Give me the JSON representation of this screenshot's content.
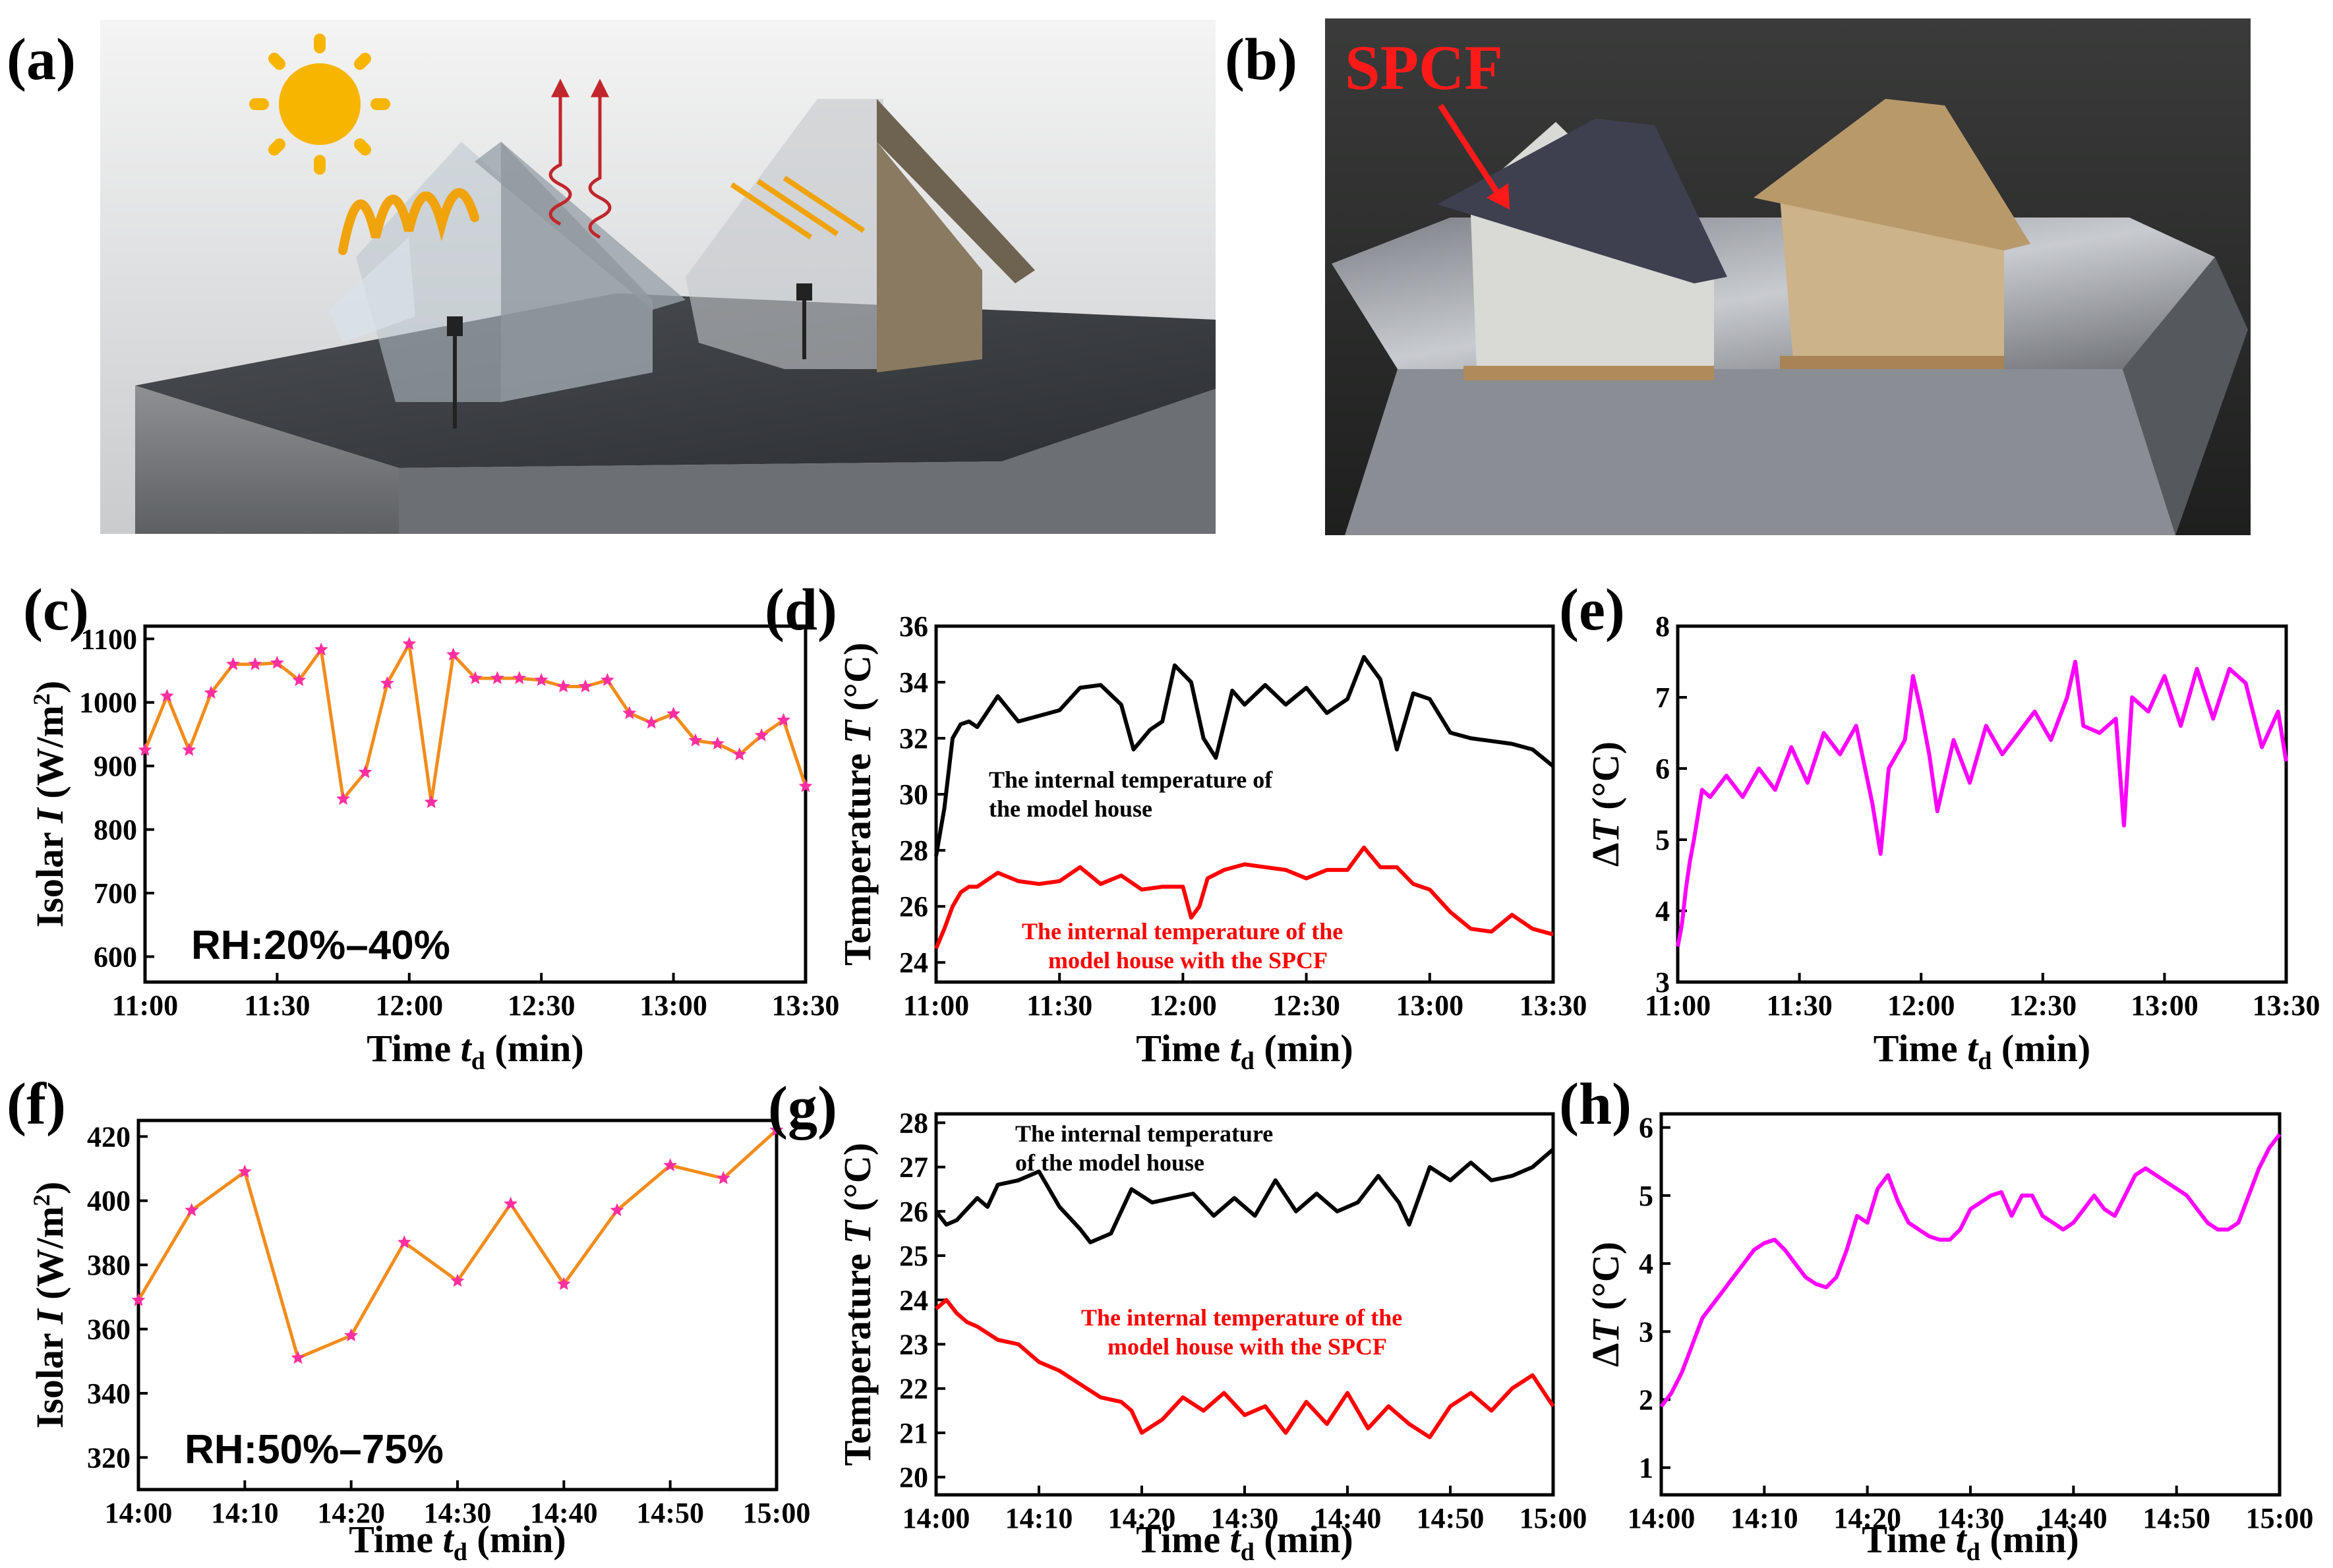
{
  "panels": {
    "a": {
      "letter": "(a)"
    },
    "b": {
      "letter": "(b)",
      "label": "SPCF"
    }
  },
  "chart_data": [
    {
      "id": "c",
      "letter": "(c)",
      "type": "line",
      "ylabel_pre": "Isolar ",
      "ylabel_var": "I",
      "ylabel_unit": " (W/m",
      "ylabel_sup": "2",
      "ylabel_post": ")",
      "xlabel_pre": "Time ",
      "xlabel_var": "t",
      "xlabel_sub": "d",
      "xlabel_post": " (min)",
      "annotation": "RH:20%–40%",
      "xlim": [
        0,
        150
      ],
      "ylim": [
        560,
        1120
      ],
      "xticks": [
        0,
        30,
        60,
        90,
        120,
        150
      ],
      "xticklabels": [
        "11:00",
        "11:30",
        "12:00",
        "12:30",
        "13:00",
        "13:30"
      ],
      "yticks": [
        600,
        700,
        800,
        900,
        1000,
        1100
      ],
      "yticklabels": [
        "600",
        "700",
        "800",
        "900",
        "1000",
        "1100"
      ],
      "grid": false,
      "series": [
        {
          "line_color": "#f28c1c",
          "marker_color": "#ff2fa0",
          "x": [
            0,
            5,
            10,
            15,
            20,
            25,
            30,
            35,
            40,
            45,
            50,
            55,
            60,
            65,
            70,
            75,
            80,
            85,
            90,
            95,
            100,
            105,
            110,
            115,
            120,
            125,
            130,
            135,
            140,
            145,
            150
          ],
          "y": [
            925,
            1010,
            925,
            1015,
            1060,
            1060,
            1062,
            1035,
            1083,
            848,
            890,
            1030,
            1092,
            843,
            1075,
            1038,
            1038,
            1038,
            1035,
            1025,
            1025,
            1035,
            983,
            968,
            982,
            940,
            935,
            918,
            948,
            972,
            868
          ]
        }
      ]
    },
    {
      "id": "d",
      "letter": "(d)",
      "type": "line",
      "ylabel_pre": "Temperature ",
      "ylabel_var": "T",
      "ylabel_unit": " (°C)",
      "ylabel_sup": "",
      "ylabel_post": "",
      "xlabel_pre": "Time ",
      "xlabel_var": "t",
      "xlabel_sub": "d",
      "xlabel_post": " (min)",
      "xlim": [
        0,
        150
      ],
      "ylim": [
        23.3,
        36
      ],
      "xticks": [
        0,
        30,
        60,
        90,
        120,
        150
      ],
      "xticklabels": [
        "11:00",
        "11:30",
        "12:00",
        "12:30",
        "13:00",
        "13:30"
      ],
      "yticks": [
        24,
        26,
        28,
        30,
        32,
        34,
        36
      ],
      "yticklabels": [
        "24",
        "26",
        "28",
        "30",
        "32",
        "34",
        "36"
      ],
      "grid": false,
      "annotations": [
        {
          "lines": [
            "The internal temperature of",
            "the model house"
          ],
          "color": "#000000"
        },
        {
          "lines": [
            "The internal temperature of the",
            "model house with the SPCF"
          ],
          "color": "#ff0000"
        }
      ],
      "series": [
        {
          "color": "#000000",
          "x": [
            0,
            2,
            4,
            6,
            8,
            10,
            15,
            20,
            25,
            30,
            35,
            40,
            45,
            48,
            52,
            55,
            58,
            62,
            65,
            68,
            72,
            75,
            80,
            85,
            90,
            95,
            100,
            104,
            108,
            112,
            116,
            120,
            125,
            130,
            135,
            140,
            145,
            150
          ],
          "y": [
            27.8,
            29.5,
            32.0,
            32.5,
            32.6,
            32.4,
            33.5,
            32.6,
            32.8,
            33.0,
            33.8,
            33.9,
            33.2,
            31.6,
            32.3,
            32.6,
            34.6,
            34.0,
            32.0,
            31.3,
            33.7,
            33.2,
            33.9,
            33.2,
            33.8,
            32.9,
            33.4,
            34.9,
            34.1,
            31.6,
            33.6,
            33.4,
            32.2,
            32.0,
            31.9,
            31.8,
            31.6,
            31.0
          ]
        },
        {
          "color": "#ff0000",
          "x": [
            0,
            2,
            4,
            6,
            8,
            10,
            15,
            20,
            25,
            30,
            35,
            40,
            45,
            50,
            55,
            60,
            62,
            64,
            66,
            70,
            75,
            80,
            85,
            90,
            95,
            100,
            104,
            108,
            112,
            116,
            120,
            125,
            130,
            135,
            140,
            145,
            150
          ],
          "y": [
            24.5,
            25.2,
            26.0,
            26.5,
            26.7,
            26.7,
            27.2,
            26.9,
            26.8,
            26.9,
            27.4,
            26.8,
            27.1,
            26.6,
            26.7,
            26.7,
            25.6,
            26.0,
            27.0,
            27.3,
            27.5,
            27.4,
            27.3,
            27.0,
            27.3,
            27.3,
            28.1,
            27.4,
            27.4,
            26.8,
            26.6,
            25.8,
            25.2,
            25.1,
            25.7,
            25.2,
            25.0
          ]
        }
      ]
    },
    {
      "id": "e",
      "letter": "(e)",
      "type": "line",
      "ylabel_pre": "Δ",
      "ylabel_var": "T",
      "ylabel_unit": " (°C)",
      "ylabel_sup": "",
      "ylabel_post": "",
      "xlabel_pre": "Time ",
      "xlabel_var": "t",
      "xlabel_sub": "d",
      "xlabel_post": " (min)",
      "xlim": [
        0,
        150
      ],
      "ylim": [
        3,
        8
      ],
      "xticks": [
        0,
        30,
        60,
        90,
        120,
        150
      ],
      "xticklabels": [
        "11:00",
        "11:30",
        "12:00",
        "12:30",
        "13:00",
        "13:30"
      ],
      "yticks": [
        3,
        4,
        5,
        6,
        7,
        8
      ],
      "yticklabels": [
        "3",
        "4",
        "5",
        "6",
        "7",
        "8"
      ],
      "grid": false,
      "series": [
        {
          "color": "#ff00ff",
          "x": [
            0,
            1,
            2,
            3,
            4,
            6,
            8,
            12,
            16,
            20,
            24,
            28,
            32,
            36,
            40,
            44,
            48,
            50,
            52,
            56,
            58,
            60,
            62,
            64,
            68,
            72,
            76,
            80,
            84,
            88,
            92,
            96,
            98,
            100,
            104,
            108,
            110,
            112,
            116,
            120,
            124,
            128,
            132,
            136,
            140,
            144,
            148,
            150
          ],
          "y": [
            3.5,
            3.8,
            4.3,
            4.7,
            5.0,
            5.7,
            5.6,
            5.9,
            5.6,
            6.0,
            5.7,
            6.3,
            5.8,
            6.5,
            6.2,
            6.6,
            5.5,
            4.8,
            6.0,
            6.4,
            7.3,
            6.8,
            6.2,
            5.4,
            6.4,
            5.8,
            6.6,
            6.2,
            6.5,
            6.8,
            6.4,
            7.0,
            7.5,
            6.6,
            6.5,
            6.7,
            5.2,
            7.0,
            6.8,
            7.3,
            6.6,
            7.4,
            6.7,
            7.4,
            7.2,
            6.3,
            6.8,
            6.1
          ]
        }
      ]
    },
    {
      "id": "f",
      "letter": "(f)",
      "type": "line",
      "ylabel_pre": "Isolar ",
      "ylabel_var": "I",
      "ylabel_unit": " (W/m",
      "ylabel_sup": "2",
      "ylabel_post": ")",
      "xlabel_pre": "Time ",
      "xlabel_var": "t",
      "xlabel_sub": "d",
      "xlabel_post": " (min)",
      "annotation": "RH:50%–75%",
      "xlim": [
        0,
        60
      ],
      "ylim": [
        310,
        425
      ],
      "xticks": [
        0,
        10,
        20,
        30,
        40,
        50,
        60
      ],
      "xticklabels": [
        "14:00",
        "14:10",
        "14:20",
        "14:30",
        "14:40",
        "14:50",
        "15:00"
      ],
      "yticks": [
        320,
        340,
        360,
        380,
        400,
        420
      ],
      "yticklabels": [
        "320",
        "340",
        "360",
        "380",
        "400",
        "420"
      ],
      "grid": false,
      "series": [
        {
          "line_color": "#f28c1c",
          "marker_color": "#ff2fa0",
          "x": [
            0,
            5,
            10,
            15,
            20,
            25,
            30,
            35,
            40,
            45,
            50,
            55,
            60
          ],
          "y": [
            369,
            397,
            409,
            351,
            358,
            387,
            375,
            399,
            374,
            397,
            411,
            407,
            422
          ]
        }
      ]
    },
    {
      "id": "g",
      "letter": "(g)",
      "type": "line",
      "ylabel_pre": "Temperature ",
      "ylabel_var": "T",
      "ylabel_unit": " (°C)",
      "ylabel_sup": "",
      "ylabel_post": "",
      "xlabel_pre": "Time ",
      "xlabel_var": "t",
      "xlabel_sub": "d",
      "xlabel_post": " (min)",
      "xlim": [
        0,
        60
      ],
      "ylim": [
        19.6,
        28.2
      ],
      "xticks": [
        0,
        10,
        20,
        30,
        40,
        50,
        60
      ],
      "xticklabels": [
        "14:00",
        "14:10",
        "14:20",
        "14:30",
        "14:40",
        "14:50",
        "15:00"
      ],
      "yticks": [
        20,
        21,
        22,
        23,
        24,
        25,
        26,
        27,
        28
      ],
      "yticklabels": [
        "20",
        "21",
        "22",
        "23",
        "24",
        "25",
        "26",
        "27",
        "28"
      ],
      "grid": false,
      "annotations": [
        {
          "lines": [
            "The internal temperature",
            "of the model house"
          ],
          "color": "#000000"
        },
        {
          "lines": [
            "The internal temperature of the",
            "model house with the SPCF"
          ],
          "color": "#ff0000"
        }
      ],
      "series": [
        {
          "color": "#000000",
          "x": [
            0,
            1,
            2,
            4,
            5,
            6,
            8,
            10,
            12,
            14,
            15,
            17,
            19,
            21,
            23,
            25,
            27,
            29,
            31,
            33,
            35,
            37,
            39,
            41,
            43,
            45,
            46,
            48,
            50,
            52,
            54,
            56,
            58,
            60
          ],
          "y": [
            26.0,
            25.7,
            25.8,
            26.3,
            26.1,
            26.6,
            26.7,
            26.9,
            26.1,
            25.6,
            25.3,
            25.5,
            26.5,
            26.2,
            26.3,
            26.4,
            25.9,
            26.3,
            25.9,
            26.7,
            26.0,
            26.4,
            26.0,
            26.2,
            26.8,
            26.2,
            25.7,
            27.0,
            26.7,
            27.1,
            26.7,
            26.8,
            27.0,
            27.4
          ]
        },
        {
          "color": "#ff0000",
          "x": [
            0,
            1,
            2,
            3,
            4,
            6,
            8,
            10,
            12,
            14,
            16,
            18,
            19,
            20,
            22,
            24,
            26,
            28,
            30,
            32,
            34,
            36,
            38,
            40,
            42,
            44,
            46,
            48,
            50,
            52,
            54,
            56,
            58,
            60
          ],
          "y": [
            23.8,
            24.0,
            23.7,
            23.5,
            23.4,
            23.1,
            23.0,
            22.6,
            22.4,
            22.1,
            21.8,
            21.7,
            21.5,
            21.0,
            21.3,
            21.8,
            21.5,
            21.9,
            21.4,
            21.6,
            21.0,
            21.7,
            21.2,
            21.9,
            21.1,
            21.6,
            21.2,
            20.9,
            21.6,
            21.9,
            21.5,
            22.0,
            22.3,
            21.6
          ]
        }
      ]
    },
    {
      "id": "h",
      "letter": "(h)",
      "type": "line",
      "ylabel_pre": "Δ",
      "ylabel_var": "T",
      "ylabel_unit": " (°C)",
      "ylabel_sup": "",
      "ylabel_post": "",
      "xlabel_pre": "Time ",
      "xlabel_var": "t",
      "xlabel_sub": "d",
      "xlabel_post": " (min)",
      "xlim": [
        0,
        60
      ],
      "ylim": [
        0.6,
        6.2
      ],
      "xticks": [
        0,
        10,
        20,
        30,
        40,
        50,
        60
      ],
      "xticklabels": [
        "14:00",
        "14:10",
        "14:20",
        "14:30",
        "14:40",
        "14:50",
        "15:00"
      ],
      "yticks": [
        1,
        2,
        3,
        4,
        5,
        6
      ],
      "yticklabels": [
        "1",
        "2",
        "3",
        "4",
        "5",
        "6"
      ],
      "grid": false,
      "series": [
        {
          "color": "#ff00ff",
          "x": [
            0,
            1,
            2,
            3,
            4,
            5,
            6,
            7,
            8,
            9,
            10,
            11,
            12,
            13,
            14,
            15,
            16,
            17,
            18,
            19,
            20,
            21,
            22,
            23,
            24,
            25,
            26,
            27,
            28,
            29,
            30,
            31,
            32,
            33,
            34,
            35,
            36,
            37,
            38,
            39,
            40,
            41,
            42,
            43,
            44,
            45,
            46,
            47,
            48,
            49,
            50,
            51,
            52,
            53,
            54,
            55,
            56,
            57,
            58,
            59,
            60
          ],
          "y": [
            1.9,
            2.1,
            2.4,
            2.8,
            3.2,
            3.4,
            3.6,
            3.8,
            4.0,
            4.2,
            4.3,
            4.35,
            4.2,
            4.0,
            3.8,
            3.7,
            3.65,
            3.8,
            4.2,
            4.7,
            4.6,
            5.1,
            5.3,
            4.9,
            4.6,
            4.5,
            4.4,
            4.35,
            4.35,
            4.5,
            4.8,
            4.9,
            5.0,
            5.05,
            4.7,
            5.0,
            5.0,
            4.7,
            4.6,
            4.5,
            4.6,
            4.8,
            5.0,
            4.8,
            4.7,
            5.0,
            5.3,
            5.4,
            5.3,
            5.2,
            5.1,
            5.0,
            4.8,
            4.6,
            4.5,
            4.5,
            4.6,
            5.0,
            5.4,
            5.7,
            5.9
          ]
        }
      ]
    }
  ]
}
